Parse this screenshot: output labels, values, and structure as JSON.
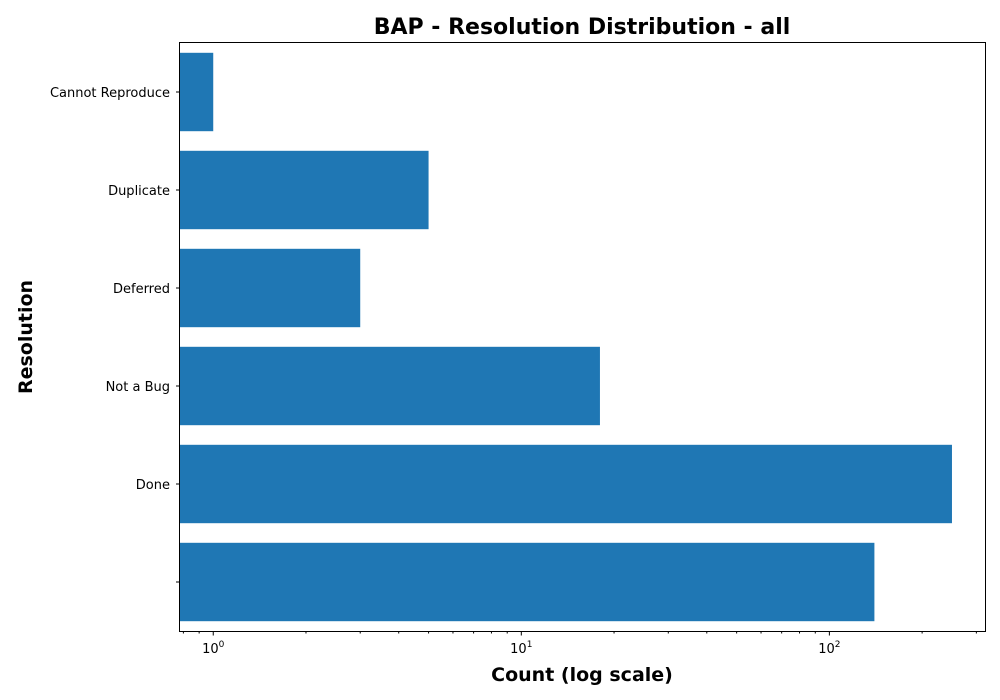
{
  "chart_data": {
    "type": "bar",
    "orientation": "horizontal",
    "title": "BAP - Resolution Distribution - all",
    "xlabel": "Count (log scale)",
    "ylabel": "Resolution",
    "x_scale": "log",
    "xlim": [
      0.78,
      320
    ],
    "categories": [
      "Cannot Reproduce",
      "Duplicate",
      "Deferred",
      "Not a Bug",
      "Done",
      ""
    ],
    "values": [
      1,
      5,
      3,
      18,
      250,
      140
    ],
    "x_ticks": [
      {
        "value": 1,
        "base": "10",
        "exp": "0"
      },
      {
        "value": 10,
        "base": "10",
        "exp": "1"
      },
      {
        "value": 100,
        "base": "10",
        "exp": "2"
      }
    ],
    "bar_color": "#1f77b4",
    "grid": false,
    "legend": "none"
  }
}
